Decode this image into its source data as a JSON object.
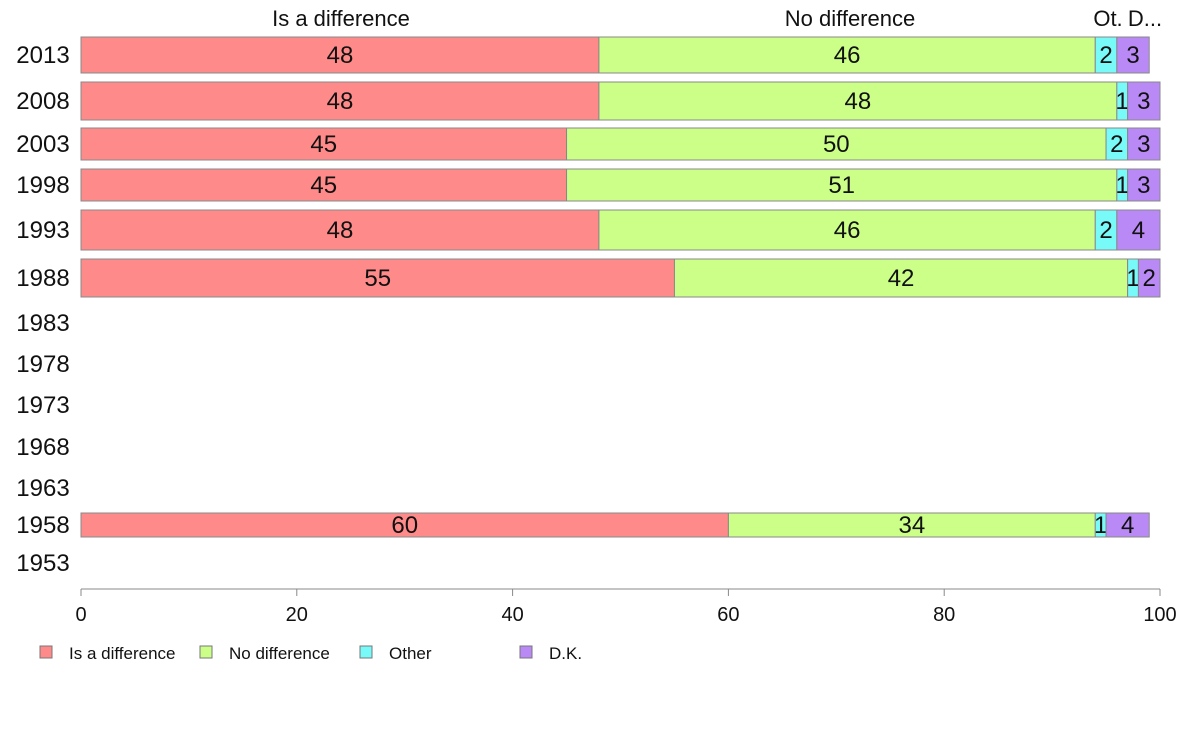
{
  "chart_data": {
    "type": "bar",
    "orientation": "horizontal",
    "stacked": true,
    "categories": [
      "2013",
      "2008",
      "2003",
      "1998",
      "1993",
      "1988",
      "1983",
      "1978",
      "1973",
      "1968",
      "1963",
      "1958",
      "1953"
    ],
    "series": [
      {
        "name": "Is a difference",
        "color": "#FF8A8A",
        "values": [
          48,
          48,
          45,
          45,
          48,
          55,
          null,
          null,
          null,
          null,
          null,
          60,
          null
        ]
      },
      {
        "name": "No difference",
        "color": "#CCFF88",
        "values": [
          46,
          48,
          50,
          51,
          46,
          42,
          null,
          null,
          null,
          null,
          null,
          34,
          null
        ]
      },
      {
        "name": "Other",
        "color": "#77FAF8",
        "values": [
          2,
          1,
          2,
          1,
          2,
          1,
          null,
          null,
          null,
          null,
          null,
          1,
          null
        ]
      },
      {
        "name": "D.K.",
        "color": "#B98AF5",
        "values": [
          3,
          3,
          3,
          3,
          4,
          2,
          null,
          null,
          null,
          null,
          null,
          4,
          null
        ]
      }
    ],
    "top_labels": [
      "Is a difference",
      "No difference",
      "Ot.",
      "D..."
    ],
    "x_ticks": [
      "0",
      "20",
      "40",
      "60",
      "80",
      "100"
    ],
    "xlim": [
      0,
      100
    ],
    "grid": false,
    "legend_position": "bottom-left"
  }
}
